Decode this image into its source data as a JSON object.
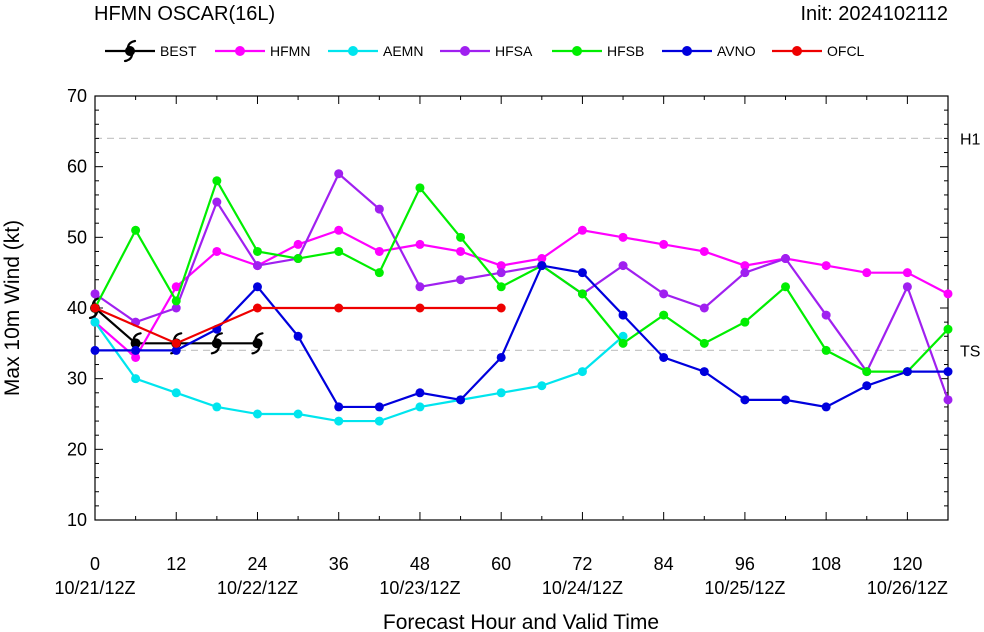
{
  "chart_data": {
    "type": "line",
    "title": "HFMN OSCAR(16L)",
    "init_label": "Init: 2024102112",
    "xlabel": "Forecast Hour and Valid Time",
    "ylabel": "Max 10m Wind (kt)",
    "xlim": [
      0,
      126
    ],
    "ylim": [
      10,
      70
    ],
    "x_ticks": [
      0,
      12,
      24,
      36,
      48,
      60,
      72,
      84,
      96,
      108,
      120
    ],
    "y_ticks": [
      10,
      20,
      30,
      40,
      50,
      60,
      70
    ],
    "date_ticks": [
      {
        "x": 0,
        "label": "10/21/12Z"
      },
      {
        "x": 24,
        "label": "10/22/12Z"
      },
      {
        "x": 48,
        "label": "10/23/12Z"
      },
      {
        "x": 72,
        "label": "10/24/12Z"
      },
      {
        "x": 96,
        "label": "10/25/12Z"
      },
      {
        "x": 120,
        "label": "10/26/12Z"
      }
    ],
    "reference_lines": [
      {
        "y": 64,
        "label": "H1"
      },
      {
        "y": 34,
        "label": "TS"
      }
    ],
    "legend_placement": "top",
    "series": [
      {
        "name": "BEST",
        "color": "#000000",
        "marker": "hurricane",
        "x": [
          0,
          6,
          12,
          18,
          24
        ],
        "y": [
          40,
          35,
          35,
          35,
          35
        ]
      },
      {
        "name": "HFMN",
        "color": "#ff00ff",
        "marker": "circle",
        "x": [
          0,
          6,
          12,
          18,
          24,
          30,
          36,
          42,
          48,
          54,
          60,
          66,
          72,
          78,
          84,
          90,
          96,
          102,
          108,
          114,
          120,
          126
        ],
        "y": [
          38,
          33,
          43,
          48,
          46,
          49,
          51,
          48,
          49,
          48,
          46,
          47,
          51,
          50,
          49,
          48,
          46,
          47,
          46,
          45,
          45,
          42
        ]
      },
      {
        "name": "AEMN",
        "color": "#00e5ee",
        "marker": "circle",
        "x": [
          0,
          6,
          12,
          18,
          24,
          30,
          36,
          42,
          48,
          54,
          60,
          66,
          72,
          78
        ],
        "y": [
          38,
          30,
          28,
          26,
          25,
          25,
          24,
          24,
          26,
          27,
          28,
          29,
          31,
          36
        ]
      },
      {
        "name": "HFSA",
        "color": "#a020f0",
        "marker": "circle",
        "x": [
          0,
          6,
          12,
          18,
          24,
          30,
          36,
          42,
          48,
          54,
          60,
          66,
          72,
          78,
          84,
          90,
          96,
          102,
          108,
          114,
          120,
          126
        ],
        "y": [
          42,
          38,
          40,
          55,
          46,
          47,
          59,
          54,
          43,
          44,
          45,
          46,
          42,
          46,
          42,
          40,
          45,
          47,
          39,
          31,
          43,
          27
        ]
      },
      {
        "name": "HFSB",
        "color": "#00ee00",
        "marker": "circle",
        "x": [
          0,
          6,
          12,
          18,
          24,
          30,
          36,
          42,
          48,
          54,
          60,
          66,
          72,
          78,
          84,
          90,
          96,
          102,
          108,
          114,
          120,
          126
        ],
        "y": [
          40,
          51,
          41,
          58,
          48,
          47,
          48,
          45,
          57,
          50,
          43,
          46,
          42,
          35,
          39,
          35,
          38,
          43,
          34,
          31,
          31,
          37
        ]
      },
      {
        "name": "AVNO",
        "color": "#0000dd",
        "marker": "circle",
        "x": [
          0,
          6,
          12,
          18,
          24,
          30,
          36,
          42,
          48,
          54,
          60,
          66,
          72,
          78,
          84,
          90,
          96,
          102,
          108,
          114,
          120,
          126
        ],
        "y": [
          34,
          34,
          34,
          37,
          43,
          36,
          26,
          26,
          28,
          27,
          33,
          46,
          45,
          39,
          33,
          31,
          27,
          27,
          26,
          29,
          31,
          31
        ]
      },
      {
        "name": "OFCL",
        "color": "#ee0000",
        "marker": "circle",
        "x": [
          0,
          12,
          24,
          36,
          48,
          60
        ],
        "y": [
          40,
          35,
          40,
          40,
          40,
          40
        ]
      }
    ]
  }
}
